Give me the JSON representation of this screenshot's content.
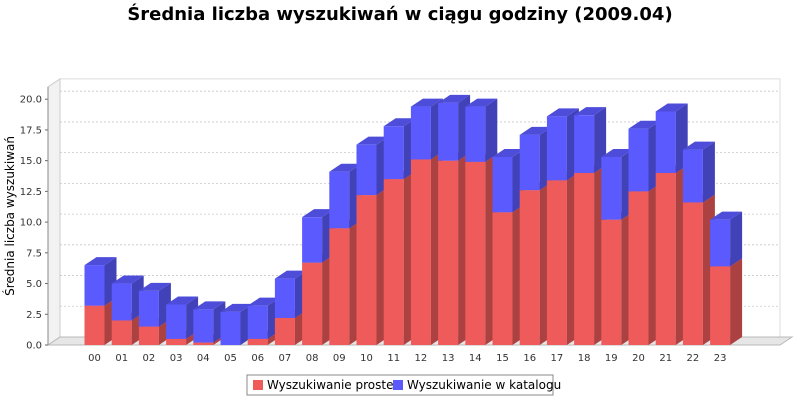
{
  "chart_data": {
    "type": "bar",
    "stacked": true,
    "render_3d": true,
    "title": "Średnia liczba wyszukiwań w ciągu godziny (2009.04)",
    "xlabel": "",
    "ylabel": "Średnia liczba wyszukiwań",
    "ylim": [
      0,
      21
    ],
    "yticks": [
      0.0,
      2.5,
      5.0,
      7.5,
      10.0,
      12.5,
      15.0,
      17.5,
      20.0
    ],
    "ytick_labels": [
      "0.0",
      "2.5",
      "5.0",
      "7.5",
      "10.0",
      "12.5",
      "15.0",
      "17.5",
      "20.0"
    ],
    "grid": true,
    "legend_position": "bottom",
    "categories": [
      "00",
      "01",
      "02",
      "03",
      "04",
      "05",
      "06",
      "07",
      "08",
      "09",
      "10",
      "11",
      "12",
      "13",
      "14",
      "15",
      "16",
      "17",
      "18",
      "19",
      "20",
      "21",
      "22",
      "23"
    ],
    "series": [
      {
        "name": "Wyszukiwanie proste",
        "color": "#ef5a5a",
        "values": [
          3.2,
          2.0,
          1.5,
          0.5,
          0.2,
          0.0,
          0.5,
          2.2,
          6.7,
          9.5,
          12.2,
          13.5,
          15.1,
          15.0,
          14.9,
          10.8,
          12.6,
          13.4,
          14.0,
          10.2,
          12.5,
          14.0,
          11.6,
          6.4
        ]
      },
      {
        "name": "Wyszukiwanie w katalogu",
        "color": "#5a5aff",
        "values": [
          3.3,
          3.0,
          2.9,
          2.8,
          2.7,
          2.7,
          2.7,
          3.2,
          3.7,
          4.6,
          4.1,
          4.3,
          4.3,
          4.7,
          4.5,
          4.5,
          4.5,
          5.2,
          4.7,
          5.1,
          5.1,
          5.0,
          4.3,
          3.8
        ]
      }
    ]
  }
}
